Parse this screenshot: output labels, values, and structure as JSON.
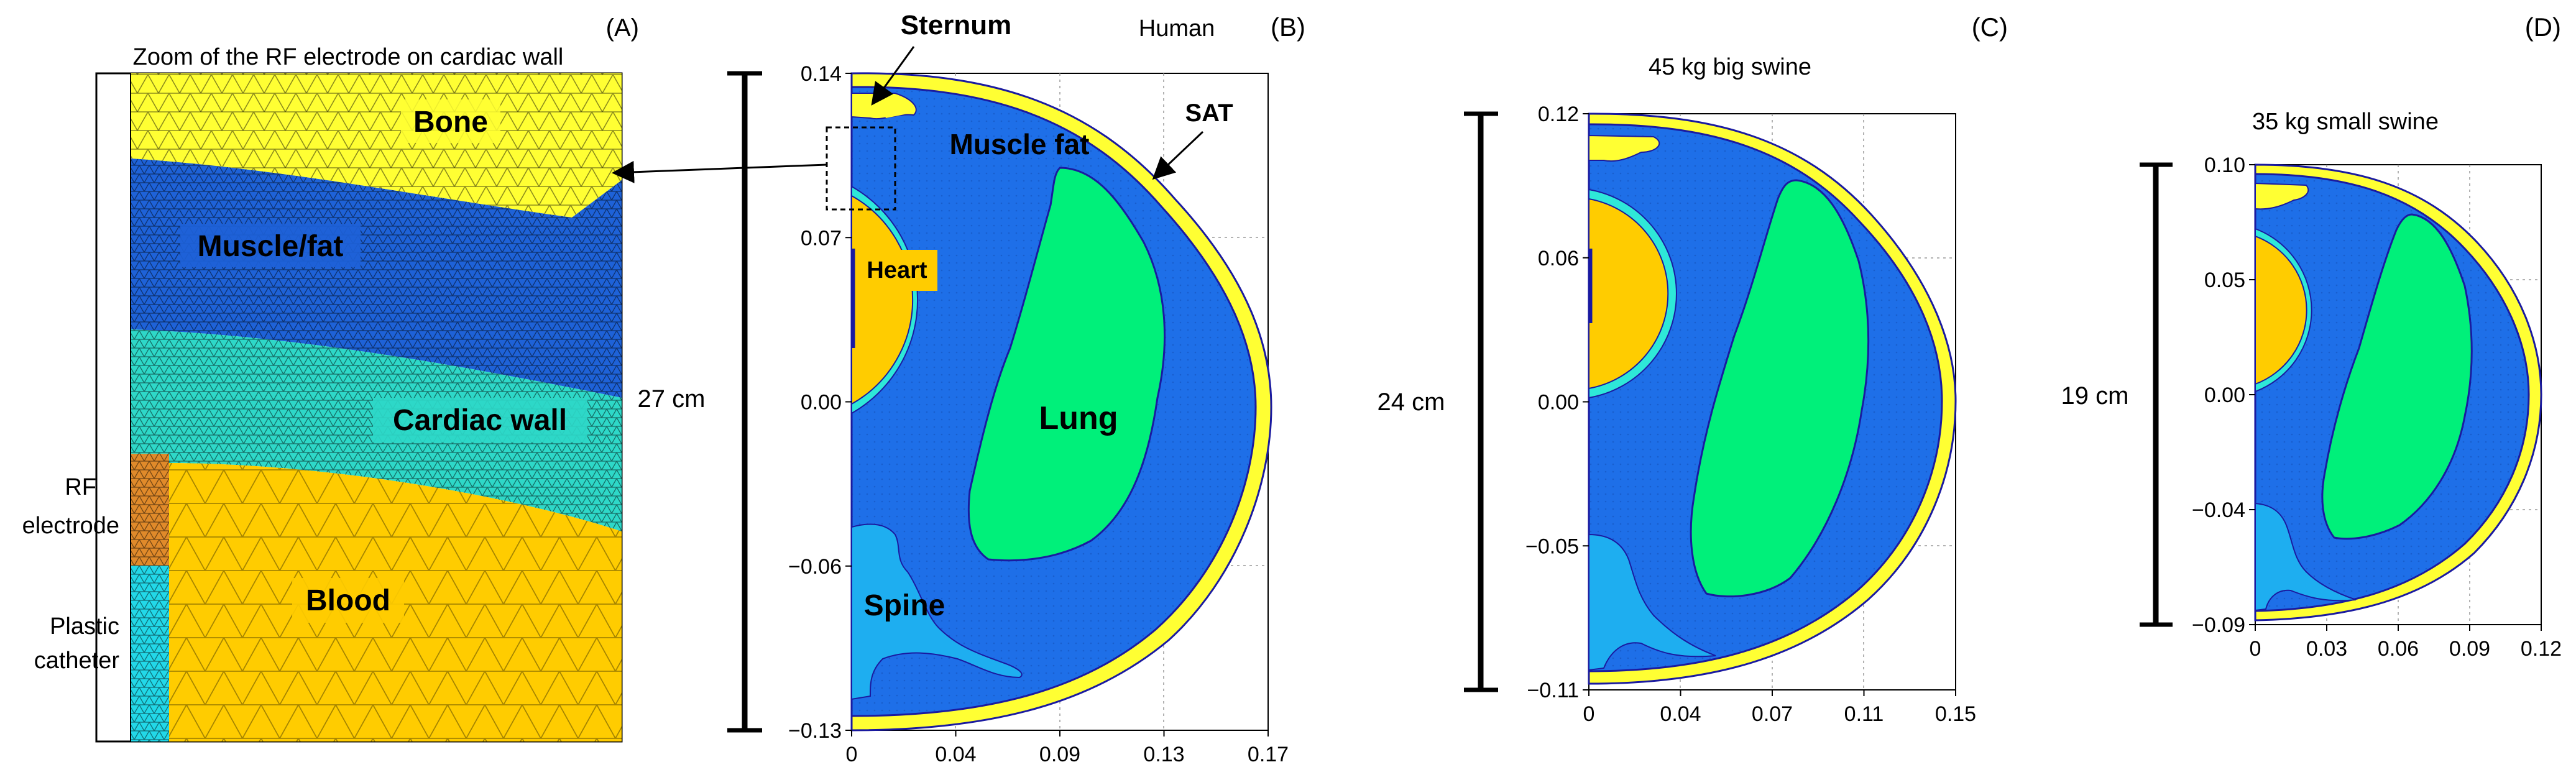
{
  "panelA": {
    "letter": "(A)",
    "title": "Zoom of the RF electrode on cardiac wall",
    "labels": {
      "bone": "Bone",
      "muscle_fat": "Muscle/fat",
      "cardiac_wall": "Cardiac wall",
      "blood": "Blood",
      "rf_electrode_1": "RF",
      "rf_electrode_2": "electrode",
      "catheter_1": "Plastic",
      "catheter_2": "catheter"
    }
  },
  "panelB": {
    "letter": "(B)",
    "subtitle": "Human",
    "scale": "27 cm",
    "labels": {
      "sternum": "Sternum",
      "sat": "SAT",
      "muscle_fat": "Muscle fat",
      "heart": "Heart",
      "lung": "Lung",
      "spine": "Spine"
    },
    "xticks": [
      "0",
      "0.04",
      "0.09",
      "0.13",
      "0.17"
    ],
    "yticks": [
      "0.14",
      "0.07",
      "0.00",
      "-0.06",
      "-0.13"
    ]
  },
  "panelC": {
    "letter": "(C)",
    "subtitle": "45 kg big swine",
    "scale": "24 cm",
    "xticks": [
      "0",
      "0.04",
      "0.07",
      "0.11",
      "0.15"
    ],
    "yticks": [
      "0.12",
      "0.06",
      "0.00",
      "-0.05",
      "-0.11"
    ]
  },
  "panelD": {
    "letter": "(D)",
    "subtitle": "35 kg small swine",
    "scale": "19 cm",
    "xticks": [
      "0",
      "0.03",
      "0.06",
      "0.09",
      "0.12"
    ],
    "yticks": [
      "0.10",
      "0.05",
      "0.00",
      "-0.04",
      "-0.09"
    ]
  },
  "colors": {
    "bone": "#ffff33",
    "muscle": "#1e6fe8",
    "lung": "#00f07a",
    "heart": "#ffcc00",
    "cardiac": "#2ee8d8",
    "spine": "#1eaef0",
    "outline": "#1a1aa0",
    "mesh_mid": "#0b3f99"
  }
}
